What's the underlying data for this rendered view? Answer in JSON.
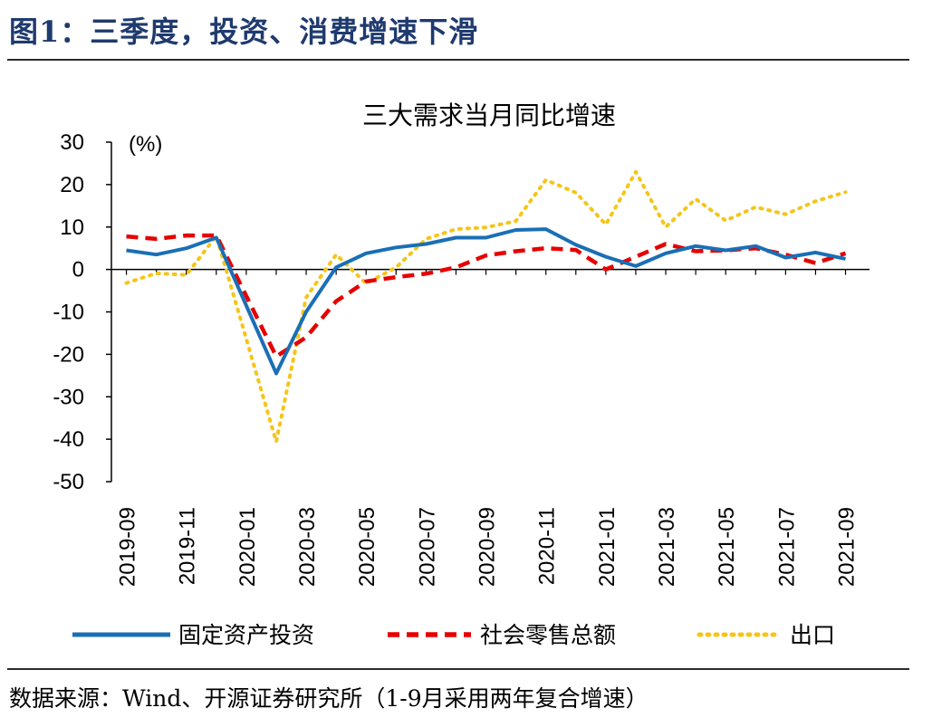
{
  "figure_title": "图1：三季度，投资、消费增速下滑",
  "source_note": "数据来源：Wind、开源证券研究所（1-9月采用两年复合增速）",
  "chart_data": {
    "type": "line",
    "title": "三大需求当月同比增速",
    "ylabel": "(%)",
    "xlabel": "",
    "ylim": [
      -50,
      30
    ],
    "yticks": [
      30,
      20,
      10,
      0,
      -10,
      -20,
      -30,
      -40,
      -50
    ],
    "x": [
      "2019-09",
      "2019-10",
      "2019-11",
      "2019-12",
      "2020-01",
      "2020-02",
      "2020-03",
      "2020-04",
      "2020-05",
      "2020-06",
      "2020-07",
      "2020-08",
      "2020-09",
      "2020-10",
      "2020-11",
      "2020-12",
      "2021-01",
      "2021-02",
      "2021-03",
      "2021-04",
      "2021-05",
      "2021-06",
      "2021-07",
      "2021-08",
      "2021-09"
    ],
    "xtick_labels": [
      "2019-09",
      "2019-11",
      "2020-01",
      "2020-03",
      "2020-05",
      "2020-07",
      "2020-09",
      "2020-11",
      "2021-01",
      "2021-03",
      "2021-05",
      "2021-07",
      "2021-09"
    ],
    "series": [
      {
        "name": "固定资产投资",
        "color": "#1a6fb5",
        "style": "solid",
        "values": [
          4.5,
          3.5,
          5.0,
          7.5,
          null,
          -24.5,
          -10.0,
          0.5,
          3.8,
          5.2,
          6.0,
          7.5,
          7.5,
          9.3,
          9.5,
          5.8,
          3.0,
          0.8,
          3.8,
          5.5,
          4.5,
          5.5,
          2.8,
          4.0,
          2.5
        ]
      },
      {
        "name": "社会零售总额",
        "color": "#e60000",
        "style": "dashed",
        "values": [
          7.8,
          7.2,
          8.0,
          8.0,
          null,
          -20.5,
          -16.0,
          -7.5,
          -2.8,
          -1.8,
          -1.0,
          0.5,
          3.3,
          4.3,
          5.0,
          4.6,
          0.0,
          3.0,
          6.0,
          4.3,
          4.5,
          5.0,
          3.5,
          1.5,
          3.8
        ]
      },
      {
        "name": "出口",
        "color": "#f5c518",
        "style": "dotted",
        "values": [
          -3.2,
          -0.9,
          -1.3,
          7.9,
          null,
          -40.6,
          -6.6,
          3.5,
          -3.3,
          0.5,
          7.2,
          9.5,
          9.9,
          11.4,
          21.1,
          18.1,
          10.6,
          23.0,
          10.0,
          16.6,
          11.5,
          14.7,
          13.0,
          16.1,
          18.2
        ]
      }
    ],
    "legend_position": "bottom",
    "grid": false
  }
}
